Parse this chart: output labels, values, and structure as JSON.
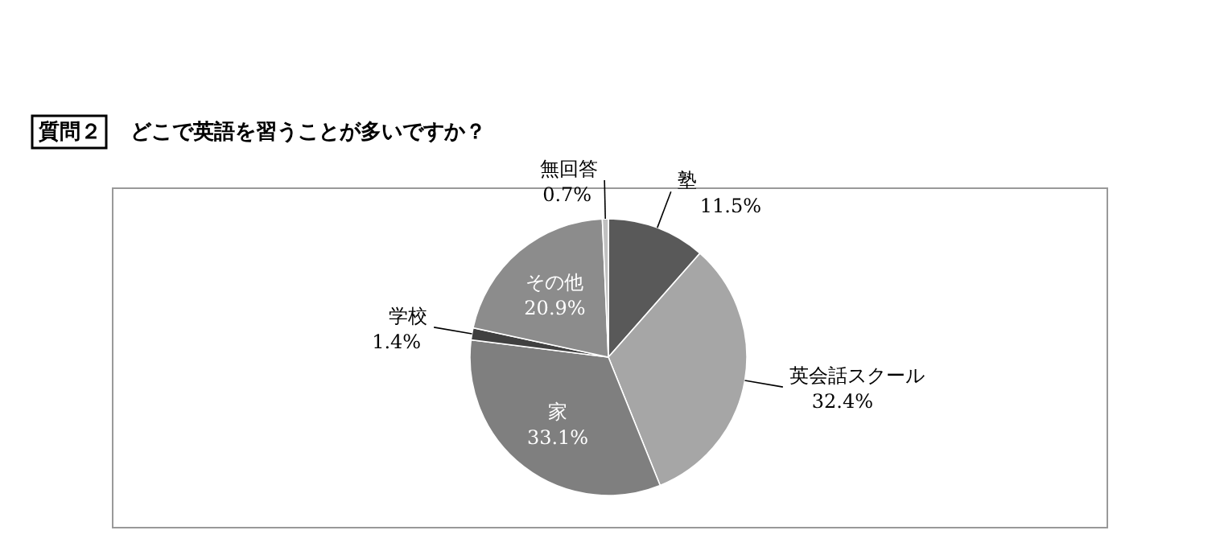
{
  "chart_data": {
    "type": "pie",
    "title": "質問２",
    "subtitle": "どこで英語を習うことが多いですか？",
    "categories": [
      "塾",
      "英会話スクール",
      "家",
      "学校",
      "その他",
      "無回答"
    ],
    "values": [
      11.5,
      32.4,
      33.1,
      1.4,
      20.9,
      0.7
    ],
    "colors": [
      "#595959",
      "#a6a6a6",
      "#7f7f7f",
      "#404040",
      "#8c8c8c",
      "#c0c0c0"
    ],
    "value_labels": [
      "11.5%",
      "32.4%",
      "33.1%",
      "1.4%",
      "20.9%",
      "0.7%"
    ]
  }
}
